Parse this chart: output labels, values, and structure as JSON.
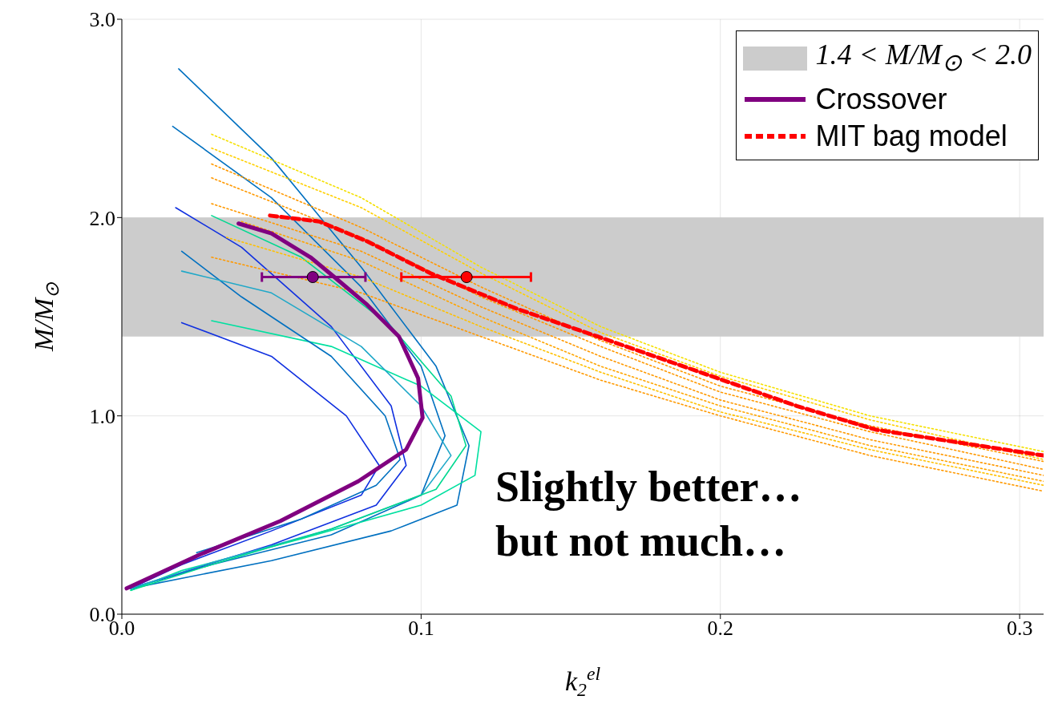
{
  "chart_data": {
    "type": "line",
    "xlabel": "k$_{2}$$^{el}$",
    "ylabel": "M/M$_{⊙}$",
    "xlim": [
      0,
      0.308
    ],
    "ylim": [
      0,
      3
    ],
    "xticks": [
      {
        "value": 0,
        "label": "0.0"
      },
      {
        "value": 0.1,
        "label": "0.1"
      },
      {
        "value": 0.2,
        "label": "0.2"
      },
      {
        "value": 0.3,
        "label": "0.3"
      }
    ],
    "yticks": [
      {
        "value": 0,
        "label": "0.0"
      },
      {
        "value": 1,
        "label": "1.0"
      },
      {
        "value": 2,
        "label": "2.0"
      },
      {
        "value": 3,
        "label": "3.0"
      }
    ],
    "grid": true,
    "legend": "top right",
    "bands": [
      {
        "axis": "y",
        "from": 1.4,
        "to": 2.0,
        "label": "1.4 < M/M$_{⊙}$ < 2.0",
        "color": "#cccccc"
      }
    ],
    "annotations": [
      "Slightly better… but not much…"
    ],
    "series": [
      {
        "color": "#0070c0",
        "line_style": "solid",
        "x": [
          0.019,
          0.05,
          0.08,
          0.105,
          0.116,
          0.112,
          0.09,
          0.05,
          0.003
        ],
        "values": [
          2.75,
          2.3,
          1.75,
          1.25,
          0.85,
          0.55,
          0.42,
          0.27,
          0.13
        ]
      },
      {
        "color": "#0070c0",
        "line_style": "solid",
        "x": [
          0.017,
          0.05,
          0.08,
          0.1,
          0.108,
          0.1,
          0.07,
          0.03,
          0.003
        ],
        "values": [
          2.46,
          2.1,
          1.65,
          1.25,
          0.9,
          0.6,
          0.4,
          0.25,
          0.13
        ]
      },
      {
        "color": "#1030e0",
        "line_style": "solid",
        "x": [
          0.018,
          0.04,
          0.07,
          0.09,
          0.095,
          0.085,
          0.05,
          0.003
        ],
        "values": [
          2.05,
          1.85,
          1.45,
          1.05,
          0.75,
          0.55,
          0.35,
          0.13
        ]
      },
      {
        "color": "#1030e0",
        "line_style": "solid",
        "x": [
          0.02,
          0.05,
          0.075,
          0.086,
          0.08,
          0.05,
          0.02,
          0.003
        ],
        "values": [
          1.47,
          1.3,
          1.0,
          0.75,
          0.6,
          0.42,
          0.25,
          0.13
        ]
      },
      {
        "color": "#00e0a0",
        "line_style": "solid",
        "x": [
          0.03,
          0.07,
          0.1,
          0.12,
          0.118,
          0.1,
          0.06,
          0.02,
          0.003
        ],
        "values": [
          1.48,
          1.35,
          1.15,
          0.92,
          0.7,
          0.55,
          0.38,
          0.22,
          0.12
        ]
      },
      {
        "color": "#0070c0",
        "line_style": "solid",
        "x": [
          0.025,
          0.06,
          0.085,
          0.093,
          0.088,
          0.07,
          0.04,
          0.02
        ],
        "values": [
          0.31,
          0.48,
          0.65,
          0.78,
          1.0,
          1.3,
          1.6,
          1.83
        ]
      },
      {
        "color": "#20a8c8",
        "line_style": "solid",
        "x": [
          0.02,
          0.05,
          0.08,
          0.1,
          0.11,
          0.1,
          0.07,
          0.03,
          0.003
        ],
        "values": [
          1.73,
          1.62,
          1.35,
          1.05,
          0.8,
          0.6,
          0.43,
          0.26,
          0.13
        ]
      },
      {
        "color": "#00d890",
        "line_style": "solid",
        "x": [
          0.03,
          0.06,
          0.09,
          0.11,
          0.115,
          0.105,
          0.07,
          0.03,
          0.003
        ],
        "values": [
          2.01,
          1.8,
          1.45,
          1.1,
          0.85,
          0.63,
          0.43,
          0.25,
          0.12
        ]
      },
      {
        "color": "#f5e000",
        "line_style": "dotted",
        "x": [
          0.03,
          0.08,
          0.12,
          0.16,
          0.2,
          0.25,
          0.308
        ],
        "values": [
          2.42,
          2.1,
          1.75,
          1.45,
          1.22,
          1.0,
          0.82
        ]
      },
      {
        "color": "#ff9900",
        "line_style": "dotted",
        "x": [
          0.03,
          0.08,
          0.12,
          0.16,
          0.2,
          0.25,
          0.308
        ],
        "values": [
          2.27,
          1.95,
          1.65,
          1.38,
          1.15,
          0.95,
          0.77
        ]
      },
      {
        "color": "#ff9900",
        "line_style": "dotted",
        "x": [
          0.03,
          0.08,
          0.12,
          0.16,
          0.2,
          0.25,
          0.308
        ],
        "values": [
          2.07,
          1.83,
          1.55,
          1.3,
          1.08,
          0.88,
          0.7
        ]
      },
      {
        "color": "#ff9900",
        "line_style": "dotted",
        "x": [
          0.03,
          0.08,
          0.12,
          0.16,
          0.2,
          0.25,
          0.308
        ],
        "values": [
          1.8,
          1.62,
          1.4,
          1.18,
          1.0,
          0.8,
          0.62
        ]
      },
      {
        "color": "#ffd000",
        "line_style": "dotted",
        "x": [
          0.03,
          0.08,
          0.12,
          0.16,
          0.2,
          0.25,
          0.308
        ],
        "values": [
          2.35,
          2.05,
          1.72,
          1.42,
          1.2,
          0.98,
          0.78
        ]
      },
      {
        "color": "#ffa500",
        "line_style": "dotted",
        "x": [
          0.04,
          0.08,
          0.12,
          0.16,
          0.2,
          0.25,
          0.308
        ],
        "values": [
          1.98,
          1.78,
          1.5,
          1.25,
          1.05,
          0.85,
          0.67
        ]
      },
      {
        "color": "#ffc000",
        "line_style": "dotted",
        "x": [
          0.035,
          0.08,
          0.12,
          0.16,
          0.2,
          0.25,
          0.308
        ],
        "values": [
          1.9,
          1.7,
          1.45,
          1.22,
          1.02,
          0.83,
          0.65
        ]
      },
      {
        "color": "#ff9900",
        "line_style": "dotted",
        "x": [
          0.03,
          0.08,
          0.12,
          0.16,
          0.2,
          0.25,
          0.308
        ],
        "values": [
          2.2,
          1.9,
          1.6,
          1.35,
          1.12,
          0.92,
          0.73
        ]
      },
      {
        "name": "Crossover",
        "color": "#800080",
        "line_style": "solid",
        "x": [
          0.0016,
          0.026,
          0.053,
          0.079,
          0.095,
          0.1005,
          0.099,
          0.0926,
          0.082,
          0.071,
          0.063,
          0.05,
          0.039
        ],
        "values": [
          0.13,
          0.3,
          0.47,
          0.67,
          0.83,
          0.99,
          1.19,
          1.4,
          1.56,
          1.7,
          1.8,
          1.92,
          1.97
        ]
      },
      {
        "name": "MIT bag model",
        "color": "#ff0000",
        "line_style": "dashed",
        "x": [
          0.0495,
          0.066,
          0.082,
          0.103,
          0.132,
          0.159,
          0.199,
          0.2255,
          0.252,
          0.308
        ],
        "values": [
          2.01,
          1.98,
          1.88,
          1.72,
          1.54,
          1.4,
          1.19,
          1.05,
          0.93,
          0.8
        ]
      },
      {
        "type": "scatter",
        "marker": "circle",
        "color": "#800080",
        "x": [
          0.0638
        ],
        "values": [
          1.7
        ],
        "xerrors": [
          [
            0.0468,
            0.0814
          ]
        ]
      },
      {
        "type": "scatter",
        "marker": "circle",
        "color": "#ff0000",
        "x": [
          0.1152
        ],
        "values": [
          1.7
        ],
        "xerrors": [
          [
            0.0934,
            0.1367
          ]
        ]
      }
    ]
  }
}
